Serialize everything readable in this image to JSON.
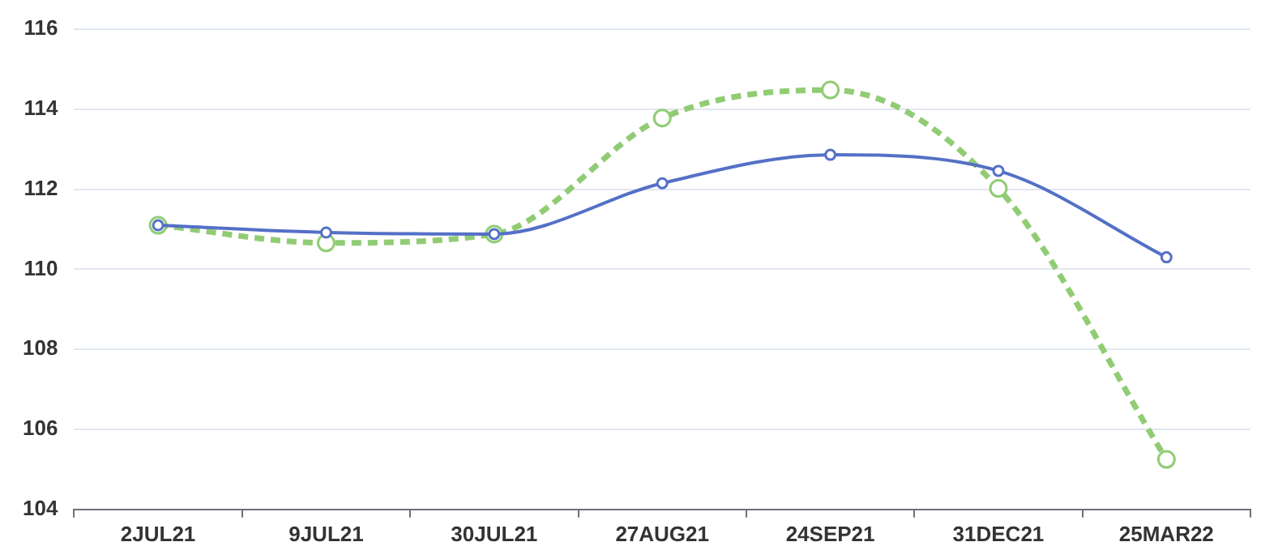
{
  "chart_data": {
    "type": "line",
    "categories": [
      "2JUL21",
      "9JUL21",
      "30JUL21",
      "27AUG21",
      "24SEP21",
      "31DEC21",
      "25MAR22"
    ],
    "series": [
      {
        "color": "#5470c6",
        "values": [
          111.1,
          110.92,
          110.88,
          112.15,
          112.86,
          112.46,
          110.3
        ],
        "line_style": "solid"
      },
      {
        "color": "#91cc75",
        "values": [
          111.1,
          110.66,
          110.88,
          113.78,
          114.48,
          112.02,
          105.25
        ],
        "line_style": "dashed"
      }
    ],
    "ylim": [
      104,
      116
    ],
    "yticks": [
      104,
      106,
      108,
      110,
      112,
      114,
      116
    ],
    "grid": "y",
    "legend": false,
    "marker": "circle"
  }
}
